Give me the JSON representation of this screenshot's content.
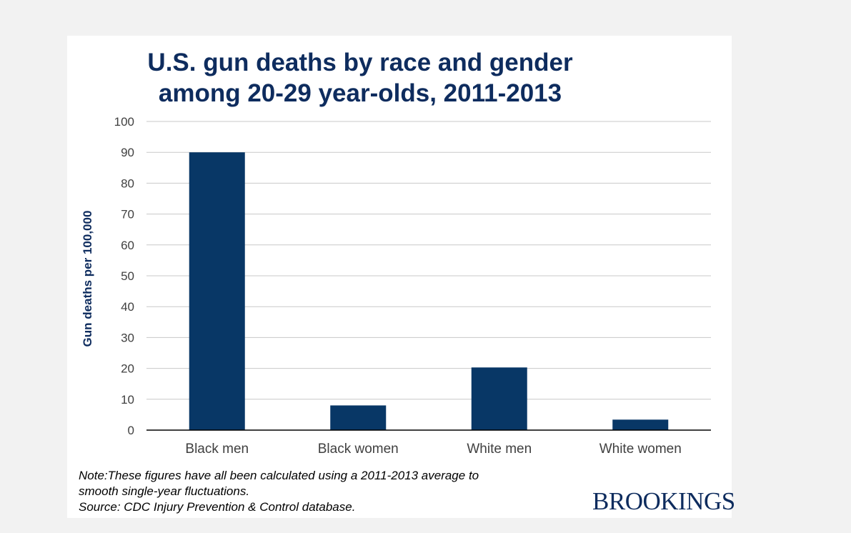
{
  "colors": {
    "title": "#0e2c5e",
    "bar": "#083766",
    "axis_label": "#0e2c5e",
    "logo": "#0e2c5e",
    "gridline": "#c8c8c8",
    "tick_text": "#404040"
  },
  "title_lines": [
    "U.S. gun deaths by race and gender",
    "among 20-29 year-olds, 2011-2013"
  ],
  "chart_data": {
    "type": "bar",
    "title": "U.S. gun deaths by race and gender among 20-29 year-olds, 2011-2013",
    "categories": [
      "Black men",
      "Black women",
      "White men",
      "White women"
    ],
    "values": [
      90,
      8,
      20.3,
      3.4
    ],
    "xlabel": "",
    "ylabel": "Gun deaths per 100,000",
    "ylim": [
      0,
      100
    ],
    "yticks": [
      0,
      10,
      20,
      30,
      40,
      50,
      60,
      70,
      80,
      90,
      100
    ],
    "grid": true,
    "legend": "none"
  },
  "note_lines": [
    "Note:These figures have all been calculated using a 2011-2013 average to",
    "smooth single-year fluctuations.",
    "Source: CDC Injury Prevention & Control database."
  ],
  "logo_text": "BROOKINGS"
}
